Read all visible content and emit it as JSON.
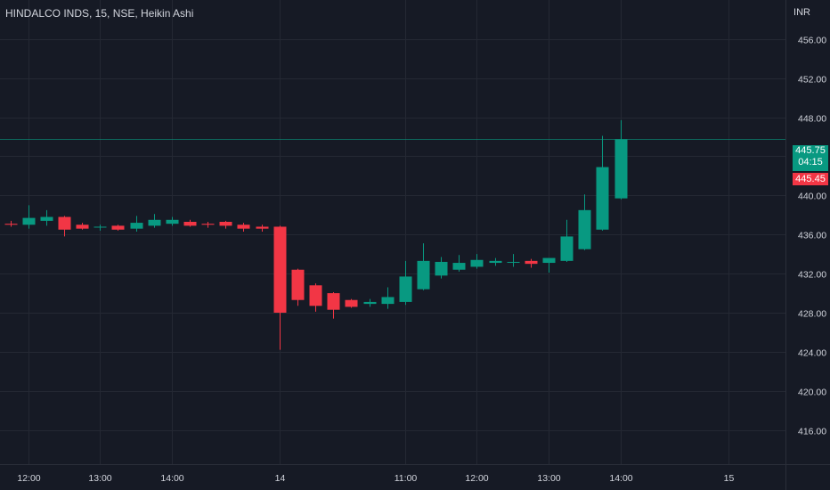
{
  "header": {
    "symbol_title": "HINDALCO INDS, 15, NSE, Heikin Ashi",
    "currency": "INR"
  },
  "price_scale": {
    "last_price": "445.75",
    "countdown": "04:15",
    "bid_price": "445.45"
  },
  "colors": {
    "background": "#161a25",
    "up": "#089981",
    "down": "#f23645",
    "grid": "#242833",
    "text": "#d1d4dc"
  },
  "chart_data": {
    "type": "candlestick",
    "style": "Heikin Ashi",
    "ylim": [
      412.5,
      460
    ],
    "y_ticks": [
      416,
      420,
      424,
      428,
      432,
      436,
      440,
      444,
      448,
      452,
      456
    ],
    "y_tick_labels": [
      "416.00",
      "420.00",
      "424.00",
      "428.00",
      "432.00",
      "436.00",
      "440.00",
      "444.00",
      "448.00",
      "452.00",
      "456.00"
    ],
    "x_ticks": [
      {
        "label": "12:00",
        "bar": 1
      },
      {
        "label": "13:00",
        "bar": 5
      },
      {
        "label": "14:00",
        "bar": 9
      },
      {
        "label": "14",
        "bar": 15
      },
      {
        "label": "11:00",
        "bar": 22
      },
      {
        "label": "12:00",
        "bar": 26
      },
      {
        "label": "13:00",
        "bar": 30
      },
      {
        "label": "14:00",
        "bar": 34
      },
      {
        "label": "15",
        "bar": 40
      }
    ],
    "total_slots": 45,
    "last_price_line": 445.75,
    "candles": [
      {
        "o": 437.1,
        "h": 437.4,
        "l": 436.8,
        "c": 437.0
      },
      {
        "o": 437.0,
        "h": 439.0,
        "l": 436.6,
        "c": 437.7
      },
      {
        "o": 437.4,
        "h": 438.5,
        "l": 436.9,
        "c": 437.8
      },
      {
        "o": 437.8,
        "h": 437.9,
        "l": 435.8,
        "c": 436.5
      },
      {
        "o": 437.0,
        "h": 437.2,
        "l": 436.5,
        "c": 436.6
      },
      {
        "o": 436.8,
        "h": 437.0,
        "l": 436.4,
        "c": 436.8
      },
      {
        "o": 436.9,
        "h": 437.0,
        "l": 436.4,
        "c": 436.5
      },
      {
        "o": 436.6,
        "h": 437.9,
        "l": 436.3,
        "c": 437.2
      },
      {
        "o": 436.9,
        "h": 438.1,
        "l": 436.7,
        "c": 437.5
      },
      {
        "o": 437.1,
        "h": 437.8,
        "l": 436.9,
        "c": 437.5
      },
      {
        "o": 437.3,
        "h": 437.5,
        "l": 436.8,
        "c": 436.9
      },
      {
        "o": 437.1,
        "h": 437.3,
        "l": 436.7,
        "c": 437.0
      },
      {
        "o": 437.3,
        "h": 437.4,
        "l": 436.6,
        "c": 436.9
      },
      {
        "o": 437.0,
        "h": 437.2,
        "l": 436.3,
        "c": 436.6
      },
      {
        "o": 436.8,
        "h": 437.0,
        "l": 436.3,
        "c": 436.6
      },
      {
        "o": 436.8,
        "h": 436.9,
        "l": 424.2,
        "c": 428.0
      },
      {
        "o": 432.4,
        "h": 432.5,
        "l": 428.7,
        "c": 429.3
      },
      {
        "o": 430.8,
        "h": 431.0,
        "l": 428.1,
        "c": 428.7
      },
      {
        "o": 430.0,
        "h": 430.1,
        "l": 427.4,
        "c": 428.3
      },
      {
        "o": 429.3,
        "h": 429.4,
        "l": 428.5,
        "c": 428.6
      },
      {
        "o": 428.9,
        "h": 429.4,
        "l": 428.6,
        "c": 429.1
      },
      {
        "o": 428.9,
        "h": 430.6,
        "l": 428.4,
        "c": 429.6
      },
      {
        "o": 429.1,
        "h": 433.3,
        "l": 428.8,
        "c": 431.7
      },
      {
        "o": 430.4,
        "h": 435.1,
        "l": 430.3,
        "c": 433.3
      },
      {
        "o": 431.8,
        "h": 433.7,
        "l": 431.5,
        "c": 433.2
      },
      {
        "o": 432.4,
        "h": 433.9,
        "l": 432.2,
        "c": 433.1
      },
      {
        "o": 432.7,
        "h": 434.0,
        "l": 432.5,
        "c": 433.4
      },
      {
        "o": 433.1,
        "h": 433.6,
        "l": 432.8,
        "c": 433.3
      },
      {
        "o": 433.2,
        "h": 434.0,
        "l": 432.7,
        "c": 433.2
      },
      {
        "o": 433.3,
        "h": 433.5,
        "l": 432.6,
        "c": 433.0
      },
      {
        "o": 433.1,
        "h": 433.6,
        "l": 432.1,
        "c": 433.6
      },
      {
        "o": 433.3,
        "h": 437.5,
        "l": 433.2,
        "c": 435.8
      },
      {
        "o": 434.5,
        "h": 440.1,
        "l": 434.4,
        "c": 438.5
      },
      {
        "o": 436.5,
        "h": 446.1,
        "l": 436.4,
        "c": 442.9
      },
      {
        "o": 439.7,
        "h": 447.7,
        "l": 439.6,
        "c": 445.75
      }
    ]
  }
}
